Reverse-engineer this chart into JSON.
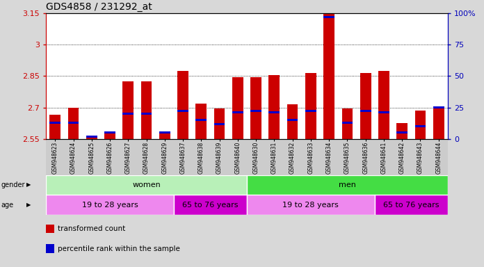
{
  "title": "GDS4858 / 231292_at",
  "samples": [
    "GSM948623",
    "GSM948624",
    "GSM948625",
    "GSM948626",
    "GSM948627",
    "GSM948628",
    "GSM948629",
    "GSM948637",
    "GSM948638",
    "GSM948639",
    "GSM948640",
    "GSM948630",
    "GSM948631",
    "GSM948632",
    "GSM948633",
    "GSM948634",
    "GSM948635",
    "GSM948636",
    "GSM948641",
    "GSM948642",
    "GSM948643",
    "GSM948644"
  ],
  "red_tops": [
    2.665,
    2.7,
    2.555,
    2.575,
    2.825,
    2.825,
    2.575,
    2.875,
    2.72,
    2.695,
    2.845,
    2.845,
    2.855,
    2.715,
    2.865,
    3.22,
    2.695,
    2.865,
    2.875,
    2.625,
    2.685,
    2.7
  ],
  "percentile_values": [
    13,
    13,
    2,
    5,
    20,
    20,
    5,
    22,
    15,
    12,
    21,
    22,
    21,
    15,
    22,
    97,
    13,
    22,
    21,
    5,
    10,
    25
  ],
  "ymin": 2.55,
  "ymax": 3.15,
  "ytick_positions": [
    2.55,
    2.7,
    2.85,
    3.0,
    3.15
  ],
  "ytick_labels": [
    "2.55",
    "2.7",
    "2.85",
    "3",
    "3.15"
  ],
  "right_ytick_positions": [
    0,
    25,
    50,
    75,
    100
  ],
  "right_ytick_labels": [
    "0",
    "25",
    "50",
    "75",
    "100%"
  ],
  "dotted_lines": [
    3.0,
    2.85,
    2.7
  ],
  "gender_groups": [
    {
      "label": "women",
      "start": 0,
      "end": 10,
      "color": "#b8f0b8"
    },
    {
      "label": "men",
      "start": 11,
      "end": 21,
      "color": "#44dd44"
    }
  ],
  "age_groups": [
    {
      "label": "19 to 28 years",
      "start": 0,
      "end": 6,
      "color": "#ee88ee"
    },
    {
      "label": "65 to 76 years",
      "start": 7,
      "end": 10,
      "color": "#cc00cc"
    },
    {
      "label": "19 to 28 years",
      "start": 11,
      "end": 17,
      "color": "#ee88ee"
    },
    {
      "label": "65 to 76 years",
      "start": 18,
      "end": 21,
      "color": "#cc00cc"
    }
  ],
  "red_color": "#cc0000",
  "blue_color": "#0000cc",
  "bg_color": "#d8d8d8",
  "plot_bg": "#ffffff",
  "tick_bg": "#cccccc",
  "bar_width": 0.6,
  "blue_bar_height": 0.01,
  "title_color": "#000000",
  "left_axis_color": "#cc0000",
  "right_axis_color": "#0000bb",
  "legend": [
    {
      "label": "transformed count",
      "color": "#cc0000"
    },
    {
      "label": "percentile rank within the sample",
      "color": "#0000cc"
    }
  ]
}
